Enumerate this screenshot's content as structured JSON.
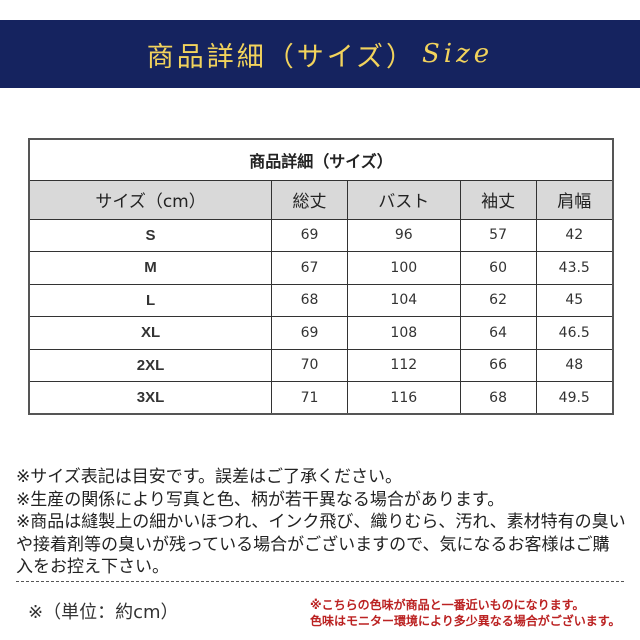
{
  "banner": {
    "title": "商品詳細（サイズ）",
    "title_en": "Size",
    "bg_color": "#15235f",
    "text_color": "#f2d35c"
  },
  "table": {
    "title": "商品詳細（サイズ）",
    "headers": [
      "サイズ（cm）",
      "総丈",
      "バスト",
      "袖丈",
      "肩幅"
    ],
    "rows": [
      [
        "S",
        "69",
        "96",
        "57",
        "42"
      ],
      [
        "M",
        "67",
        "100",
        "60",
        "43.5"
      ],
      [
        "L",
        "68",
        "104",
        "62",
        "45"
      ],
      [
        "XL",
        "69",
        "108",
        "64",
        "46.5"
      ],
      [
        "2XL",
        "70",
        "112",
        "66",
        "48"
      ],
      [
        "3XL",
        "71",
        "116",
        "68",
        "49.5"
      ]
    ]
  },
  "notes": [
    "※サイズ表記は目安です。誤差はご了承ください。",
    "※生産の関係により写真と色、柄が若干異なる場合があります。",
    "※商品は縫製上の細かいほつれ、インク飛び、織りむら、汚れ、素材特有の臭いや接着剤等の臭いが残っている場合がございますので、気になるお客様はご購入をお控え下さい。"
  ],
  "unit": "※（単位：約cm）",
  "color_note": [
    "※こちらの色味が商品と一番近いものになります。",
    "色味はモニター環境により多少異なる場合がございます。"
  ]
}
